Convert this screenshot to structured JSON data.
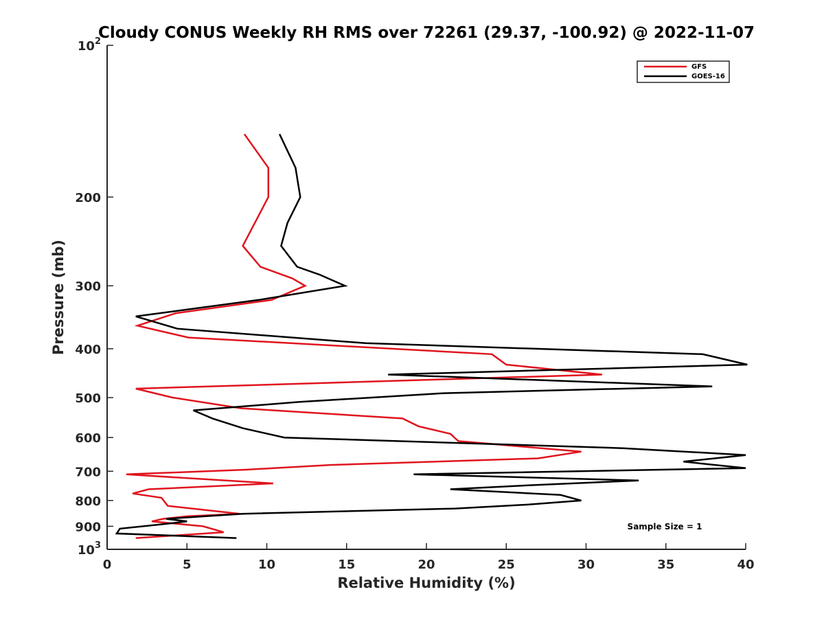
{
  "chart_data": {
    "type": "line",
    "title": "Cloudy CONUS Weekly RH RMS over 72261 (29.37, -100.92) @ 2022-11-07",
    "xlabel": "Relative Humidity (%)",
    "ylabel": "Pressure (mb)",
    "xlim": [
      0,
      40
    ],
    "ylim": [
      100,
      1000
    ],
    "y_scale": "log",
    "y_reversed": true,
    "x_ticks": [
      0,
      5,
      10,
      15,
      20,
      25,
      30,
      35,
      40
    ],
    "x_tick_labels": [
      "0",
      "5",
      "10",
      "15",
      "20",
      "25",
      "30",
      "35",
      "40"
    ],
    "y_ticks": [
      100,
      200,
      300,
      400,
      500,
      600,
      700,
      800,
      900,
      1000
    ],
    "y_tick_labels": [
      {
        "base": "10",
        "exp": "2"
      },
      {
        "base": "200",
        "exp": ""
      },
      {
        "base": "300",
        "exp": ""
      },
      {
        "base": "400",
        "exp": ""
      },
      {
        "base": "500",
        "exp": ""
      },
      {
        "base": "600",
        "exp": ""
      },
      {
        "base": "700",
        "exp": ""
      },
      {
        "base": "800",
        "exp": ""
      },
      {
        "base": "900",
        "exp": ""
      },
      {
        "base": "10",
        "exp": "3"
      }
    ],
    "grid": false,
    "legend_position": "top-right",
    "annotation": "Sample Size = 1",
    "series": [
      {
        "name": "GFS",
        "color": "#e0141e",
        "points": [
          [
            8.6,
            150
          ],
          [
            10.1,
            175
          ],
          [
            10.1,
            200
          ],
          [
            8.5,
            250
          ],
          [
            9.6,
            275
          ],
          [
            11.6,
            290
          ],
          [
            12.4,
            300
          ],
          [
            10.3,
            320
          ],
          [
            4.3,
            340
          ],
          [
            1.9,
            360
          ],
          [
            5.1,
            380
          ],
          [
            24.1,
            410
          ],
          [
            25,
            430
          ],
          [
            31,
            450
          ],
          [
            1.8,
            480
          ],
          [
            4.1,
            500
          ],
          [
            8.4,
            525
          ],
          [
            18.5,
            550
          ],
          [
            19.5,
            570
          ],
          [
            21.5,
            590
          ],
          [
            22,
            610
          ],
          [
            29.7,
            640
          ],
          [
            27,
            660
          ],
          [
            14,
            680
          ],
          [
            8.7,
            695
          ],
          [
            1.2,
            710
          ],
          [
            10.4,
            740
          ],
          [
            2.6,
            760
          ],
          [
            1.6,
            775
          ],
          [
            3.4,
            790
          ],
          [
            3.8,
            820
          ],
          [
            8.3,
            850
          ],
          [
            5,
            860
          ],
          [
            3.5,
            870
          ],
          [
            2.8,
            880
          ],
          [
            6,
            900
          ],
          [
            7.3,
            925
          ],
          [
            1.8,
            950
          ]
        ]
      },
      {
        "name": "GOES-16",
        "color": "#000000",
        "points": [
          [
            10.8,
            150
          ],
          [
            11.8,
            175
          ],
          [
            12.1,
            200
          ],
          [
            11.3,
            225
          ],
          [
            10.9,
            250
          ],
          [
            11.9,
            275
          ],
          [
            13.3,
            285
          ],
          [
            14.9,
            300
          ],
          [
            9.5,
            320
          ],
          [
            1.8,
            345
          ],
          [
            4.4,
            365
          ],
          [
            16.2,
            390
          ],
          [
            37.3,
            410
          ],
          [
            40.1,
            430
          ],
          [
            17.6,
            450
          ],
          [
            37.9,
            475
          ],
          [
            21.1,
            490
          ],
          [
            12,
            510
          ],
          [
            5.4,
            530
          ],
          [
            6.6,
            550
          ],
          [
            8.5,
            575
          ],
          [
            11.1,
            600
          ],
          [
            32.3,
            630
          ],
          [
            40,
            650
          ],
          [
            36.1,
            670
          ],
          [
            40,
            690
          ],
          [
            19.2,
            710
          ],
          [
            33.3,
            730
          ],
          [
            26.9,
            745
          ],
          [
            21.5,
            760
          ],
          [
            28.4,
            780
          ],
          [
            29.7,
            800
          ],
          [
            26.4,
            815
          ],
          [
            21.8,
            830
          ],
          [
            8.5,
            850
          ],
          [
            3.7,
            870
          ],
          [
            5,
            880
          ],
          [
            3.7,
            890
          ],
          [
            0.8,
            910
          ],
          [
            0.6,
            930
          ],
          [
            8.1,
            950
          ]
        ]
      }
    ]
  }
}
